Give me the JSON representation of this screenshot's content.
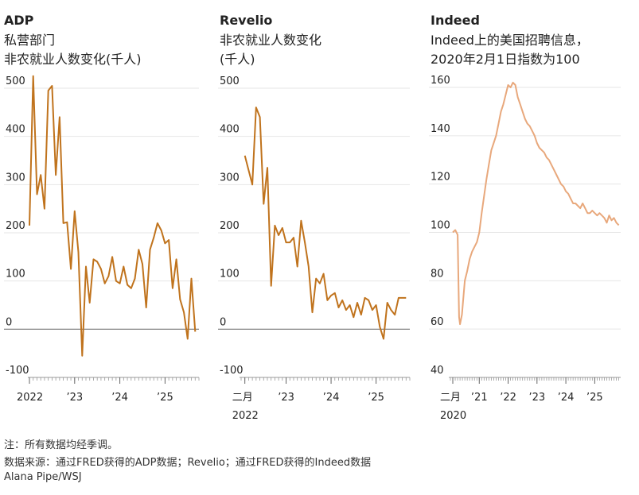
{
  "chart_data": [
    {
      "type": "line",
      "title": "ADP",
      "subtitle": [
        "私营部门",
        "非农就业人数变化(千人)"
      ],
      "ylim": [
        -100,
        500
      ],
      "yticks": [
        "500",
        "400",
        "300",
        "200",
        "100",
        "0",
        "-100"
      ],
      "xticks": [
        {
          "label": "2022",
          "x": 2022.0
        },
        {
          "label": "’23",
          "x": 2023.0
        },
        {
          "label": "’24",
          "x": 2024.0
        },
        {
          "label": "’25",
          "x": 2025.0
        }
      ],
      "xlim": [
        2022.0,
        2025.75
      ],
      "color": "#c0731d",
      "series": [
        {
          "x": [
            2022.0,
            2022.083,
            2022.167,
            2022.25,
            2022.333,
            2022.417,
            2022.5,
            2022.583,
            2022.667,
            2022.75,
            2022.833,
            2022.917,
            2023.0,
            2023.083,
            2023.167,
            2023.25,
            2023.333,
            2023.417,
            2023.5,
            2023.583,
            2023.667,
            2023.75,
            2023.833,
            2023.917,
            2024.0,
            2024.083,
            2024.167,
            2024.25,
            2024.333,
            2024.417,
            2024.5,
            2024.583,
            2024.667,
            2024.75,
            2024.833,
            2024.917,
            2025.0,
            2025.083,
            2025.167,
            2025.25,
            2025.333,
            2025.417,
            2025.5,
            2025.583,
            2025.667
          ],
          "y": [
            215,
            525,
            280,
            320,
            250,
            495,
            505,
            320,
            440,
            220,
            222,
            125,
            245,
            160,
            -55,
            130,
            55,
            145,
            140,
            125,
            95,
            110,
            150,
            100,
            95,
            130,
            92,
            85,
            105,
            165,
            135,
            45,
            165,
            190,
            220,
            205,
            178,
            185,
            85,
            145,
            62,
            35,
            -20,
            105,
            -5
          ]
        }
      ]
    },
    {
      "type": "line",
      "title": "Revelio",
      "subtitle": [
        "非农就业人数变化",
        "(千人)"
      ],
      "ylim": [
        -100,
        500
      ],
      "yticks": [
        "500",
        "400",
        "300",
        "200",
        "100",
        "0",
        "-100"
      ],
      "xticks": [
        {
          "label": "二月",
          "label2": "2022",
          "x": 2022.083
        },
        {
          "label": "’23",
          "x": 2023.0
        },
        {
          "label": "’24",
          "x": 2024.0
        },
        {
          "label": "’25",
          "x": 2025.0
        }
      ],
      "xlim": [
        2022.0,
        2025.75
      ],
      "color": "#c0731d",
      "series": [
        {
          "x": [
            2022.083,
            2022.167,
            2022.25,
            2022.333,
            2022.417,
            2022.5,
            2022.583,
            2022.667,
            2022.75,
            2022.833,
            2022.917,
            2023.0,
            2023.083,
            2023.167,
            2023.25,
            2023.333,
            2023.417,
            2023.5,
            2023.583,
            2023.667,
            2023.75,
            2023.833,
            2023.917,
            2024.0,
            2024.083,
            2024.167,
            2024.25,
            2024.333,
            2024.417,
            2024.5,
            2024.583,
            2024.667,
            2024.75,
            2024.833,
            2024.917,
            2025.0,
            2025.083,
            2025.167,
            2025.25,
            2025.333,
            2025.417,
            2025.5,
            2025.583,
            2025.667
          ],
          "y": [
            360,
            330,
            300,
            460,
            440,
            260,
            335,
            90,
            215,
            195,
            210,
            180,
            180,
            190,
            130,
            225,
            180,
            130,
            35,
            105,
            95,
            115,
            60,
            70,
            75,
            45,
            60,
            40,
            50,
            25,
            55,
            30,
            65,
            60,
            40,
            50,
            5,
            -20,
            55,
            40,
            30,
            65,
            65,
            65
          ]
        }
      ]
    },
    {
      "type": "line",
      "title": "Indeed",
      "subtitle": [
        "Indeed上的美国招聘信息，",
        "2020年2月1日指数为100"
      ],
      "ylim": [
        40,
        160
      ],
      "yticks": [
        "160",
        "140",
        "120",
        "100",
        "80",
        "60",
        "40"
      ],
      "xticks": [
        {
          "label": "二月",
          "label2": "2020",
          "x": 2020.083
        },
        {
          "label": "’21",
          "x": 2021.0
        },
        {
          "label": "’22",
          "x": 2022.0
        },
        {
          "label": "’23",
          "x": 2023.0
        },
        {
          "label": "’24",
          "x": 2024.0
        },
        {
          "label": "’25",
          "x": 2025.0
        }
      ],
      "xlim": [
        2020.0,
        2025.9
      ],
      "color": "#e8a87c",
      "series": [
        {
          "x": [
            2020.083,
            2020.167,
            2020.25,
            2020.3,
            2020.333,
            2020.4,
            2020.5,
            2020.583,
            2020.667,
            2020.75,
            2020.833,
            2020.917,
            2021.0,
            2021.083,
            2021.167,
            2021.25,
            2021.333,
            2021.417,
            2021.5,
            2021.583,
            2021.667,
            2021.75,
            2021.833,
            2021.917,
            2022.0,
            2022.083,
            2022.167,
            2022.25,
            2022.333,
            2022.417,
            2022.5,
            2022.583,
            2022.667,
            2022.75,
            2022.833,
            2022.917,
            2023.0,
            2023.083,
            2023.167,
            2023.25,
            2023.333,
            2023.417,
            2023.5,
            2023.583,
            2023.667,
            2023.75,
            2023.833,
            2023.917,
            2024.0,
            2024.083,
            2024.167,
            2024.25,
            2024.333,
            2024.417,
            2024.5,
            2024.583,
            2024.667,
            2024.75,
            2024.833,
            2024.917,
            2025.0,
            2025.083,
            2025.167,
            2025.25,
            2025.333,
            2025.417,
            2025.5,
            2025.583,
            2025.667,
            2025.75,
            2025.833
          ],
          "y": [
            100,
            101,
            99,
            65,
            62,
            66,
            80,
            84,
            89,
            92,
            94,
            96,
            100,
            108,
            115,
            122,
            128,
            134,
            137,
            140,
            145,
            150,
            153,
            157,
            161,
            160,
            162,
            161,
            156,
            153,
            150,
            147,
            145,
            144,
            142,
            140,
            137,
            135,
            134,
            133,
            131,
            130,
            128,
            126,
            124,
            122,
            120,
            119,
            117,
            116,
            114,
            112,
            112,
            111,
            110,
            112,
            110,
            108,
            108,
            109,
            108,
            107,
            108,
            107,
            106,
            104,
            107,
            105,
            106,
            104,
            103
          ]
        }
      ]
    }
  ],
  "footer": {
    "note": "注：所有数据均经季调。",
    "source": "数据来源：通过FRED获得的ADP数据；Revelio；通过FRED获得的Indeed数据",
    "credit": "Alana Pipe/WSJ"
  }
}
